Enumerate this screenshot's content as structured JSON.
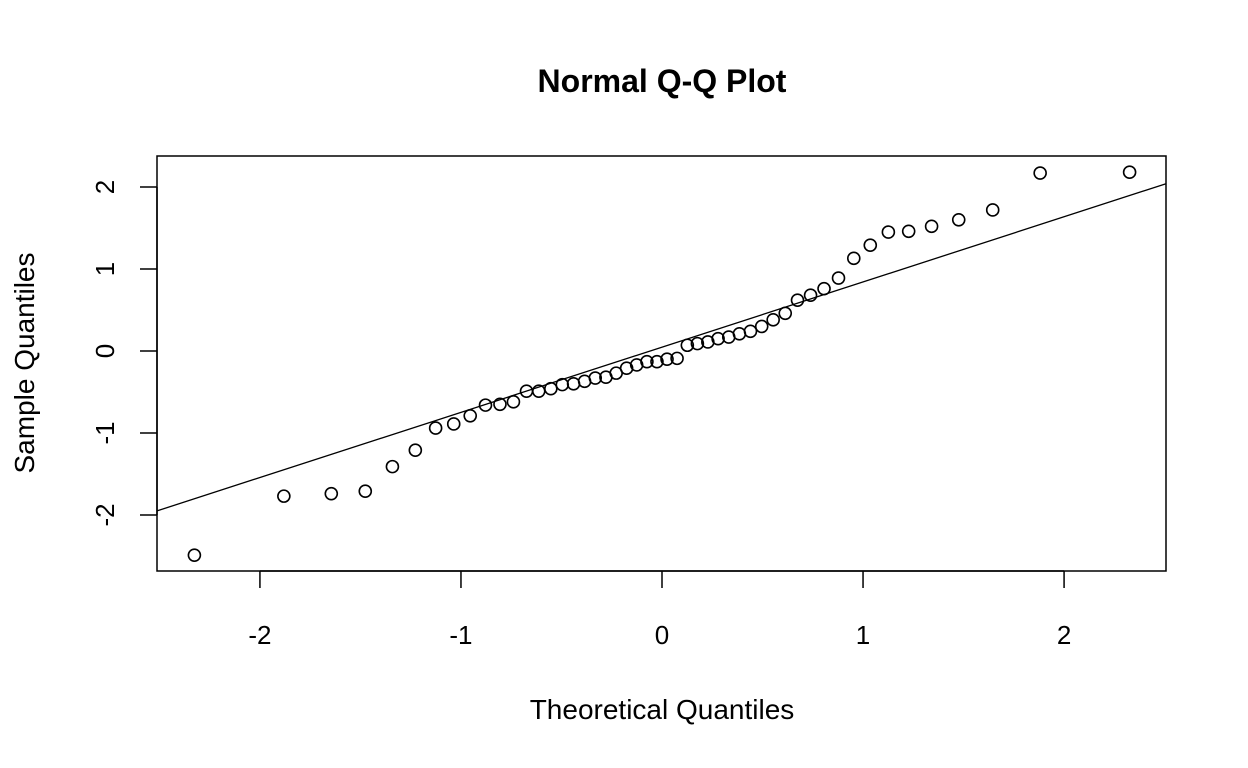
{
  "chart_data": {
    "type": "scatter",
    "title": "Normal Q-Q Plot",
    "xlabel": "Theoretical Quantiles",
    "ylabel": "Sample Quantiles",
    "xlim": [
      -2.512,
      2.507
    ],
    "ylim": [
      -2.683,
      2.378
    ],
    "xticks": [
      -2,
      -1,
      0,
      1,
      2
    ],
    "yticks": [
      -2,
      -1,
      0,
      1,
      2
    ],
    "x": [
      -2.326,
      -1.881,
      -1.645,
      -1.476,
      -1.341,
      -1.227,
      -1.126,
      -1.036,
      -0.954,
      -0.878,
      -0.806,
      -0.739,
      -0.674,
      -0.613,
      -0.553,
      -0.496,
      -0.44,
      -0.385,
      -0.332,
      -0.279,
      -0.228,
      -0.176,
      -0.126,
      -0.075,
      -0.025,
      0.025,
      0.075,
      0.126,
      0.176,
      0.228,
      0.279,
      0.332,
      0.385,
      0.44,
      0.496,
      0.553,
      0.613,
      0.674,
      0.739,
      0.806,
      0.878,
      0.954,
      1.036,
      1.126,
      1.227,
      1.341,
      1.476,
      1.645,
      1.881,
      2.326
    ],
    "y": [
      -2.49,
      -1.77,
      -1.74,
      -1.71,
      -1.41,
      -1.21,
      -0.94,
      -0.89,
      -0.79,
      -0.66,
      -0.65,
      -0.62,
      -0.49,
      -0.49,
      -0.46,
      -0.41,
      -0.4,
      -0.37,
      -0.33,
      -0.32,
      -0.27,
      -0.21,
      -0.17,
      -0.13,
      -0.13,
      -0.1,
      -0.09,
      0.07,
      0.09,
      0.11,
      0.15,
      0.17,
      0.21,
      0.24,
      0.3,
      0.38,
      0.46,
      0.62,
      0.68,
      0.76,
      0.89,
      1.13,
      1.29,
      1.45,
      1.46,
      1.52,
      1.6,
      1.72,
      2.17,
      2.18
    ],
    "reference_line": {
      "intercept": 0.047,
      "slope": 0.795
    },
    "grid": false
  }
}
